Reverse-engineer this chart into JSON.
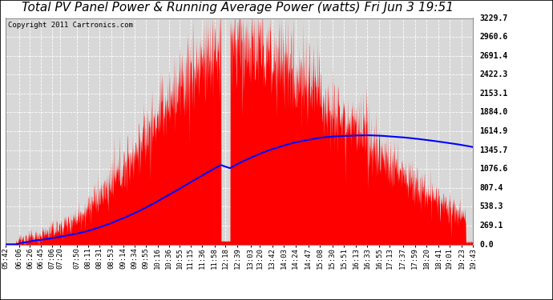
{
  "title": "Total PV Panel Power & Running Average Power (watts) Fri Jun 3 19:51",
  "copyright": "Copyright 2011 Cartronics.com",
  "y_max": 3229.7,
  "y_ticks": [
    0.0,
    269.1,
    538.3,
    807.4,
    1076.6,
    1345.7,
    1614.9,
    1884.0,
    2153.1,
    2422.3,
    2691.4,
    2960.6,
    3229.7
  ],
  "bg_color": "#ffffff",
  "plot_bg_color": "#d8d8d8",
  "bar_color": "#ff0000",
  "avg_color": "#0000ff",
  "grid_color": "#ffffff",
  "title_fontsize": 11,
  "copyright_fontsize": 6.5,
  "tick_fontsize": 6.5,
  "time_labels": [
    "05:42",
    "06:06",
    "06:26",
    "06:45",
    "07:06",
    "07:20",
    "07:50",
    "08:11",
    "08:31",
    "08:53",
    "09:14",
    "09:34",
    "09:55",
    "10:16",
    "10:36",
    "10:55",
    "11:15",
    "11:36",
    "11:58",
    "12:18",
    "12:39",
    "13:03",
    "13:20",
    "13:42",
    "14:03",
    "14:24",
    "14:47",
    "15:08",
    "15:30",
    "15:51",
    "16:13",
    "16:33",
    "16:55",
    "17:13",
    "17:37",
    "17:59",
    "18:20",
    "18:41",
    "19:01",
    "19:23",
    "19:43"
  ]
}
